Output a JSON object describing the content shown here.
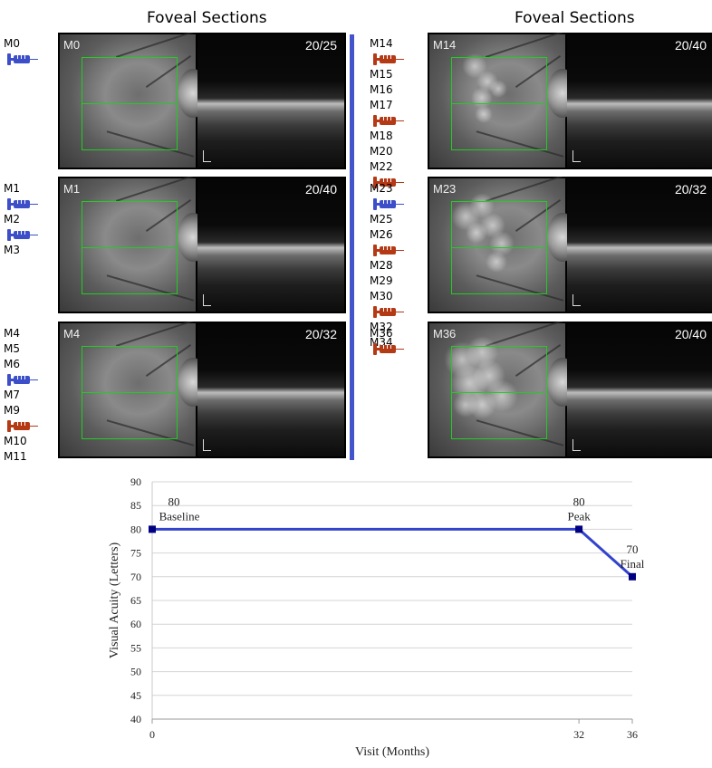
{
  "columns": [
    {
      "title": "Foveal Sections"
    },
    {
      "title": "Foveal Sections"
    }
  ],
  "colors": {
    "divider": "#4455cc",
    "syringe_blue": "#3d4fc8",
    "syringe_red": "#b43a16",
    "line": "#3344cc",
    "marker": "#000080"
  },
  "panels": [
    {
      "label": "M0",
      "va": "20/25",
      "spots": false,
      "visits": [
        {
          "text": "M0",
          "syringe": "blue"
        }
      ]
    },
    {
      "label": "M1",
      "va": "20/40",
      "spots": false,
      "visits": [
        {
          "text": "M1",
          "syringe": "blue"
        },
        {
          "text": "M2",
          "syringe": "blue"
        },
        {
          "text": "M3",
          "syringe": ""
        }
      ]
    },
    {
      "label": "M4",
      "va": "20/32",
      "spots": false,
      "visits": [
        {
          "text": "M4",
          "syringe": ""
        },
        {
          "text": "M5",
          "syringe": ""
        },
        {
          "text": "M6",
          "syringe": "blue"
        },
        {
          "text": "M7",
          "syringe": ""
        },
        {
          "text": "M9",
          "syringe": "red"
        },
        {
          "text": "M10",
          "syringe": ""
        },
        {
          "text": "M11",
          "syringe": ""
        }
      ]
    },
    {
      "label": "M14",
      "va": "20/40",
      "spots": true,
      "visits": [
        {
          "text": "M14",
          "syringe": "red"
        },
        {
          "text": "M15",
          "syringe": ""
        },
        {
          "text": "M16",
          "syringe": ""
        },
        {
          "text": "M17",
          "syringe": "red"
        },
        {
          "text": "M18",
          "syringe": ""
        },
        {
          "text": "M20",
          "syringe": ""
        },
        {
          "text": "M22",
          "syringe": "red"
        }
      ]
    },
    {
      "label": "M23",
      "va": "20/32",
      "spots": true,
      "visits": [
        {
          "text": "M23",
          "syringe": "blue"
        },
        {
          "text": "M25",
          "syringe": ""
        },
        {
          "text": "M26",
          "syringe": "red"
        },
        {
          "text": "M28",
          "syringe": ""
        },
        {
          "text": "M29",
          "syringe": ""
        },
        {
          "text": "M30",
          "syringe": "red"
        },
        {
          "text": "M32",
          "syringe": ""
        },
        {
          "text": "M34",
          "syringe": ""
        }
      ]
    },
    {
      "label": "M36",
      "va": "20/40",
      "spots": true,
      "visits": [
        {
          "text": "M36",
          "syringe": "red"
        }
      ]
    }
  ],
  "chart_data": {
    "type": "line",
    "xlabel": "Visit (Months)",
    "ylabel": "Visual Acuity (Letters)",
    "ylim": [
      40,
      90
    ],
    "yticks": [
      40,
      45,
      50,
      55,
      60,
      65,
      70,
      75,
      80,
      85,
      90
    ],
    "xticks": [
      "0",
      "32",
      "36"
    ],
    "grid": true,
    "points": [
      {
        "x": "0",
        "y": 80,
        "value_label": "80",
        "name": "Baseline"
      },
      {
        "x": "32",
        "y": 80,
        "value_label": "80",
        "name": "Peak"
      },
      {
        "x": "36",
        "y": 70,
        "value_label": "70",
        "name": "Final"
      }
    ]
  }
}
